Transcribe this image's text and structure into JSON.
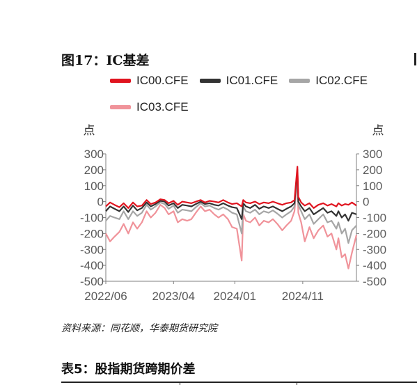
{
  "figure": {
    "title": "图17：IC基差",
    "source": "资料来源：同花顺，华泰期货研究院"
  },
  "table_caption": "表5：股指期货跨期价差",
  "colors": {
    "IC00": "#e0141f",
    "IC01": "#333333",
    "IC02": "#a6a6a6",
    "IC03": "#f0939a",
    "axis": "#7f7f7f",
    "tick_text": "#595959"
  },
  "chart_data": {
    "type": "line",
    "title": "IC基差",
    "ylabel_left": "点",
    "ylabel_right": "点",
    "ylim": [
      -500,
      300
    ],
    "yticks": [
      300,
      200,
      100,
      0,
      -100,
      -200,
      -300,
      -400,
      -500
    ],
    "x_range": [
      "2022-06-01",
      "2025-06-30"
    ],
    "xticks": [
      {
        "date": "2022-06-01",
        "label": "2022/06"
      },
      {
        "date": "2023-04-01",
        "label": "2023/04"
      },
      {
        "date": "2024-01-01",
        "label": "2024/01"
      },
      {
        "date": "2024-11-01",
        "label": "2024/11"
      }
    ],
    "grid": false,
    "legend_position": "top",
    "series": [
      {
        "name": "IC00.CFE",
        "color_key": "IC00",
        "points": [
          [
            "2022-06-01",
            -30
          ],
          [
            "2022-06-20",
            -5
          ],
          [
            "2022-07-10",
            -20
          ],
          [
            "2022-08-01",
            -35
          ],
          [
            "2022-08-20",
            -10
          ],
          [
            "2022-09-10",
            -40
          ],
          [
            "2022-10-01",
            -5
          ],
          [
            "2022-10-20",
            -30
          ],
          [
            "2022-11-10",
            -25
          ],
          [
            "2022-12-01",
            10
          ],
          [
            "2022-12-20",
            -15
          ],
          [
            "2023-01-10",
            -5
          ],
          [
            "2023-02-01",
            15
          ],
          [
            "2023-02-20",
            10
          ],
          [
            "2023-03-10",
            -10
          ],
          [
            "2023-04-01",
            5
          ],
          [
            "2023-04-20",
            -20
          ],
          [
            "2023-05-10",
            0
          ],
          [
            "2023-06-01",
            -5
          ],
          [
            "2023-06-20",
            -10
          ],
          [
            "2023-07-10",
            0
          ],
          [
            "2023-08-01",
            10
          ],
          [
            "2023-08-20",
            -5
          ],
          [
            "2023-09-10",
            5
          ],
          [
            "2023-10-01",
            0
          ],
          [
            "2023-10-20",
            -5
          ],
          [
            "2023-11-10",
            10
          ],
          [
            "2023-12-01",
            -5
          ],
          [
            "2023-12-20",
            -15
          ],
          [
            "2024-01-10",
            -10
          ],
          [
            "2024-02-01",
            -30
          ],
          [
            "2024-02-08",
            10
          ],
          [
            "2024-02-20",
            -5
          ],
          [
            "2024-03-10",
            -10
          ],
          [
            "2024-04-01",
            0
          ],
          [
            "2024-04-20",
            -15
          ],
          [
            "2024-05-10",
            -5
          ],
          [
            "2024-06-01",
            -10
          ],
          [
            "2024-06-20",
            0
          ],
          [
            "2024-07-10",
            -10
          ],
          [
            "2024-08-01",
            -20
          ],
          [
            "2024-08-20",
            -10
          ],
          [
            "2024-09-10",
            -5
          ],
          [
            "2024-09-25",
            10
          ],
          [
            "2024-10-08",
            220
          ],
          [
            "2024-10-12",
            30
          ],
          [
            "2024-10-25",
            -5
          ],
          [
            "2024-11-10",
            -25
          ],
          [
            "2024-12-01",
            -10
          ],
          [
            "2024-12-20",
            -40
          ],
          [
            "2025-01-10",
            -20
          ],
          [
            "2025-02-01",
            -10
          ],
          [
            "2025-02-20",
            -25
          ],
          [
            "2025-03-10",
            -15
          ],
          [
            "2025-04-01",
            -30
          ],
          [
            "2025-04-10",
            -10
          ],
          [
            "2025-04-25",
            -25
          ],
          [
            "2025-05-10",
            -15
          ],
          [
            "2025-05-25",
            -20
          ],
          [
            "2025-06-10",
            -5
          ],
          [
            "2025-06-30",
            -25
          ]
        ]
      },
      {
        "name": "IC01.CFE",
        "color_key": "IC01",
        "points": [
          [
            "2022-06-01",
            -60
          ],
          [
            "2022-06-20",
            -30
          ],
          [
            "2022-07-10",
            -45
          ],
          [
            "2022-08-01",
            -60
          ],
          [
            "2022-08-20",
            -30
          ],
          [
            "2022-09-10",
            -65
          ],
          [
            "2022-10-01",
            -25
          ],
          [
            "2022-10-20",
            -55
          ],
          [
            "2022-11-10",
            -40
          ],
          [
            "2022-12-01",
            -5
          ],
          [
            "2022-12-20",
            -30
          ],
          [
            "2023-01-10",
            -15
          ],
          [
            "2023-02-01",
            5
          ],
          [
            "2023-02-20",
            0
          ],
          [
            "2023-03-10",
            -25
          ],
          [
            "2023-04-01",
            -10
          ],
          [
            "2023-04-20",
            -40
          ],
          [
            "2023-05-10",
            -20
          ],
          [
            "2023-06-01",
            -25
          ],
          [
            "2023-06-20",
            -30
          ],
          [
            "2023-07-10",
            -15
          ],
          [
            "2023-08-01",
            0
          ],
          [
            "2023-08-20",
            -15
          ],
          [
            "2023-09-10",
            -10
          ],
          [
            "2023-10-01",
            -20
          ],
          [
            "2023-10-20",
            -25
          ],
          [
            "2023-11-10",
            -10
          ],
          [
            "2023-12-01",
            -25
          ],
          [
            "2023-12-20",
            -35
          ],
          [
            "2024-01-10",
            -40
          ],
          [
            "2024-02-01",
            -110
          ],
          [
            "2024-02-08",
            -10
          ],
          [
            "2024-02-20",
            -30
          ],
          [
            "2024-03-10",
            -40
          ],
          [
            "2024-04-01",
            -20
          ],
          [
            "2024-04-20",
            -45
          ],
          [
            "2024-05-10",
            -30
          ],
          [
            "2024-06-01",
            -40
          ],
          [
            "2024-06-20",
            -30
          ],
          [
            "2024-07-10",
            -45
          ],
          [
            "2024-08-01",
            -60
          ],
          [
            "2024-08-20",
            -45
          ],
          [
            "2024-09-10",
            -30
          ],
          [
            "2024-09-25",
            -10
          ],
          [
            "2024-10-08",
            200
          ],
          [
            "2024-10-12",
            0
          ],
          [
            "2024-10-25",
            -30
          ],
          [
            "2024-11-10",
            -60
          ],
          [
            "2024-12-01",
            -40
          ],
          [
            "2024-12-20",
            -80
          ],
          [
            "2025-01-10",
            -60
          ],
          [
            "2025-02-01",
            -40
          ],
          [
            "2025-02-20",
            -70
          ],
          [
            "2025-03-10",
            -60
          ],
          [
            "2025-04-01",
            -90
          ],
          [
            "2025-04-10",
            -60
          ],
          [
            "2025-04-25",
            -100
          ],
          [
            "2025-05-10",
            -80
          ],
          [
            "2025-05-25",
            -120
          ],
          [
            "2025-06-10",
            -70
          ],
          [
            "2025-06-30",
            -80
          ]
        ]
      },
      {
        "name": "IC02.CFE",
        "color_key": "IC02",
        "points": [
          [
            "2022-06-01",
            -120
          ],
          [
            "2022-06-20",
            -90
          ],
          [
            "2022-07-10",
            -100
          ],
          [
            "2022-08-01",
            -110
          ],
          [
            "2022-08-20",
            -60
          ],
          [
            "2022-09-10",
            -110
          ],
          [
            "2022-10-01",
            -60
          ],
          [
            "2022-10-20",
            -90
          ],
          [
            "2022-11-10",
            -70
          ],
          [
            "2022-12-01",
            -20
          ],
          [
            "2022-12-20",
            -50
          ],
          [
            "2023-01-10",
            -30
          ],
          [
            "2023-02-01",
            -5
          ],
          [
            "2023-02-20",
            -15
          ],
          [
            "2023-03-10",
            -45
          ],
          [
            "2023-04-01",
            -25
          ],
          [
            "2023-04-20",
            -70
          ],
          [
            "2023-05-10",
            -50
          ],
          [
            "2023-06-01",
            -55
          ],
          [
            "2023-06-20",
            -60
          ],
          [
            "2023-07-10",
            -35
          ],
          [
            "2023-08-01",
            -10
          ],
          [
            "2023-08-20",
            -30
          ],
          [
            "2023-09-10",
            -25
          ],
          [
            "2023-10-01",
            -40
          ],
          [
            "2023-10-20",
            -50
          ],
          [
            "2023-11-10",
            -35
          ],
          [
            "2023-12-01",
            -50
          ],
          [
            "2023-12-20",
            -70
          ],
          [
            "2024-01-10",
            -80
          ],
          [
            "2024-02-01",
            -200
          ],
          [
            "2024-02-08",
            -30
          ],
          [
            "2024-02-20",
            -60
          ],
          [
            "2024-03-10",
            -70
          ],
          [
            "2024-04-01",
            -50
          ],
          [
            "2024-04-20",
            -80
          ],
          [
            "2024-05-10",
            -60
          ],
          [
            "2024-06-01",
            -70
          ],
          [
            "2024-06-20",
            -55
          ],
          [
            "2024-07-10",
            -75
          ],
          [
            "2024-08-01",
            -100
          ],
          [
            "2024-08-20",
            -80
          ],
          [
            "2024-09-10",
            -60
          ],
          [
            "2024-09-25",
            -30
          ],
          [
            "2024-10-08",
            180
          ],
          [
            "2024-10-12",
            -20
          ],
          [
            "2024-10-25",
            -60
          ],
          [
            "2024-11-10",
            -110
          ],
          [
            "2024-12-01",
            -80
          ],
          [
            "2024-12-20",
            -140
          ],
          [
            "2025-01-10",
            -110
          ],
          [
            "2025-02-01",
            -80
          ],
          [
            "2025-02-20",
            -130
          ],
          [
            "2025-03-10",
            -120
          ],
          [
            "2025-04-01",
            -170
          ],
          [
            "2025-04-10",
            -130
          ],
          [
            "2025-04-25",
            -200
          ],
          [
            "2025-05-10",
            -170
          ],
          [
            "2025-05-25",
            -260
          ],
          [
            "2025-06-10",
            -180
          ],
          [
            "2025-06-30",
            -150
          ]
        ]
      },
      {
        "name": "IC03.CFE",
        "color_key": "IC03",
        "points": [
          [
            "2022-06-01",
            -200
          ],
          [
            "2022-06-20",
            -250
          ],
          [
            "2022-07-10",
            -220
          ],
          [
            "2022-08-01",
            -190
          ],
          [
            "2022-08-20",
            -140
          ],
          [
            "2022-09-10",
            -200
          ],
          [
            "2022-10-01",
            -130
          ],
          [
            "2022-10-20",
            -170
          ],
          [
            "2022-11-10",
            -130
          ],
          [
            "2022-12-01",
            -60
          ],
          [
            "2022-12-20",
            -100
          ],
          [
            "2023-01-10",
            -70
          ],
          [
            "2023-02-01",
            -20
          ],
          [
            "2023-02-20",
            -40
          ],
          [
            "2023-03-10",
            -80
          ],
          [
            "2023-04-01",
            -60
          ],
          [
            "2023-04-20",
            -130
          ],
          [
            "2023-05-10",
            -110
          ],
          [
            "2023-06-01",
            -120
          ],
          [
            "2023-06-20",
            -110
          ],
          [
            "2023-07-10",
            -70
          ],
          [
            "2023-08-01",
            -30
          ],
          [
            "2023-08-20",
            -60
          ],
          [
            "2023-09-10",
            -50
          ],
          [
            "2023-10-01",
            -80
          ],
          [
            "2023-10-20",
            -100
          ],
          [
            "2023-11-10",
            -80
          ],
          [
            "2023-12-01",
            -110
          ],
          [
            "2023-12-20",
            -160
          ],
          [
            "2024-01-10",
            -170
          ],
          [
            "2024-02-01",
            -370
          ],
          [
            "2024-02-08",
            -80
          ],
          [
            "2024-02-20",
            -120
          ],
          [
            "2024-03-10",
            -130
          ],
          [
            "2024-04-01",
            -100
          ],
          [
            "2024-04-20",
            -150
          ],
          [
            "2024-05-10",
            -120
          ],
          [
            "2024-06-01",
            -130
          ],
          [
            "2024-06-20",
            -110
          ],
          [
            "2024-07-10",
            -140
          ],
          [
            "2024-08-01",
            -180
          ],
          [
            "2024-08-20",
            -150
          ],
          [
            "2024-09-10",
            -120
          ],
          [
            "2024-09-25",
            -60
          ],
          [
            "2024-10-08",
            150
          ],
          [
            "2024-10-12",
            -70
          ],
          [
            "2024-10-25",
            -130
          ],
          [
            "2024-11-10",
            -250
          ],
          [
            "2024-12-01",
            -160
          ],
          [
            "2024-12-20",
            -230
          ],
          [
            "2025-01-10",
            -180
          ],
          [
            "2025-02-01",
            -150
          ],
          [
            "2025-02-20",
            -220
          ],
          [
            "2025-03-10",
            -200
          ],
          [
            "2025-04-01",
            -300
          ],
          [
            "2025-04-10",
            -230
          ],
          [
            "2025-04-25",
            -350
          ],
          [
            "2025-05-10",
            -330
          ],
          [
            "2025-05-25",
            -420
          ],
          [
            "2025-06-10",
            -320
          ],
          [
            "2025-06-30",
            -210
          ]
        ]
      }
    ]
  }
}
